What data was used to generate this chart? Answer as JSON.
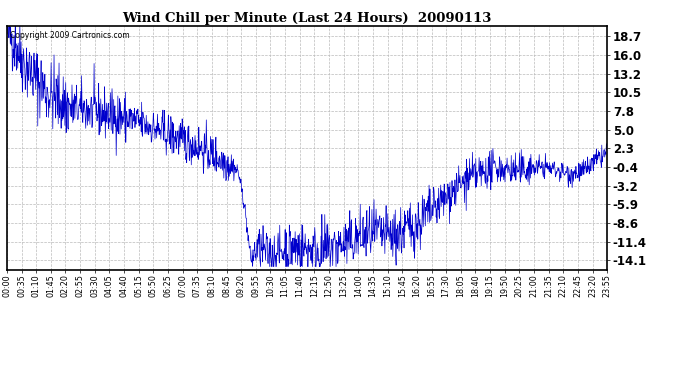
{
  "title": "Wind Chill per Minute (Last 24 Hours)  20090113",
  "copyright_text": "Copyright 2009 Cartronics.com",
  "line_color": "#0000CC",
  "bg_color": "#ffffff",
  "plot_bg_color": "#ffffff",
  "grid_color": "#bbbbbb",
  "yticks": [
    18.7,
    16.0,
    13.2,
    10.5,
    7.8,
    5.0,
    2.3,
    -0.4,
    -3.2,
    -5.9,
    -8.6,
    -11.4,
    -14.1
  ],
  "ylim": [
    -15.5,
    20.2
  ],
  "xtick_labels": [
    "00:00",
    "00:35",
    "01:10",
    "01:45",
    "02:20",
    "02:55",
    "03:30",
    "04:05",
    "04:40",
    "05:15",
    "05:50",
    "06:25",
    "07:00",
    "07:35",
    "08:10",
    "08:45",
    "09:20",
    "09:55",
    "10:30",
    "11:05",
    "11:40",
    "12:15",
    "12:50",
    "13:25",
    "14:00",
    "14:35",
    "15:10",
    "15:45",
    "16:20",
    "16:55",
    "17:30",
    "18:05",
    "18:40",
    "19:15",
    "19:50",
    "20:25",
    "21:00",
    "21:35",
    "22:10",
    "22:45",
    "23:20",
    "23:55"
  ],
  "num_points": 1440,
  "seed": 42,
  "title_fontsize": 9.5,
  "ytick_fontsize": 8.5,
  "xtick_fontsize": 5.8,
  "copyright_fontsize": 5.5
}
